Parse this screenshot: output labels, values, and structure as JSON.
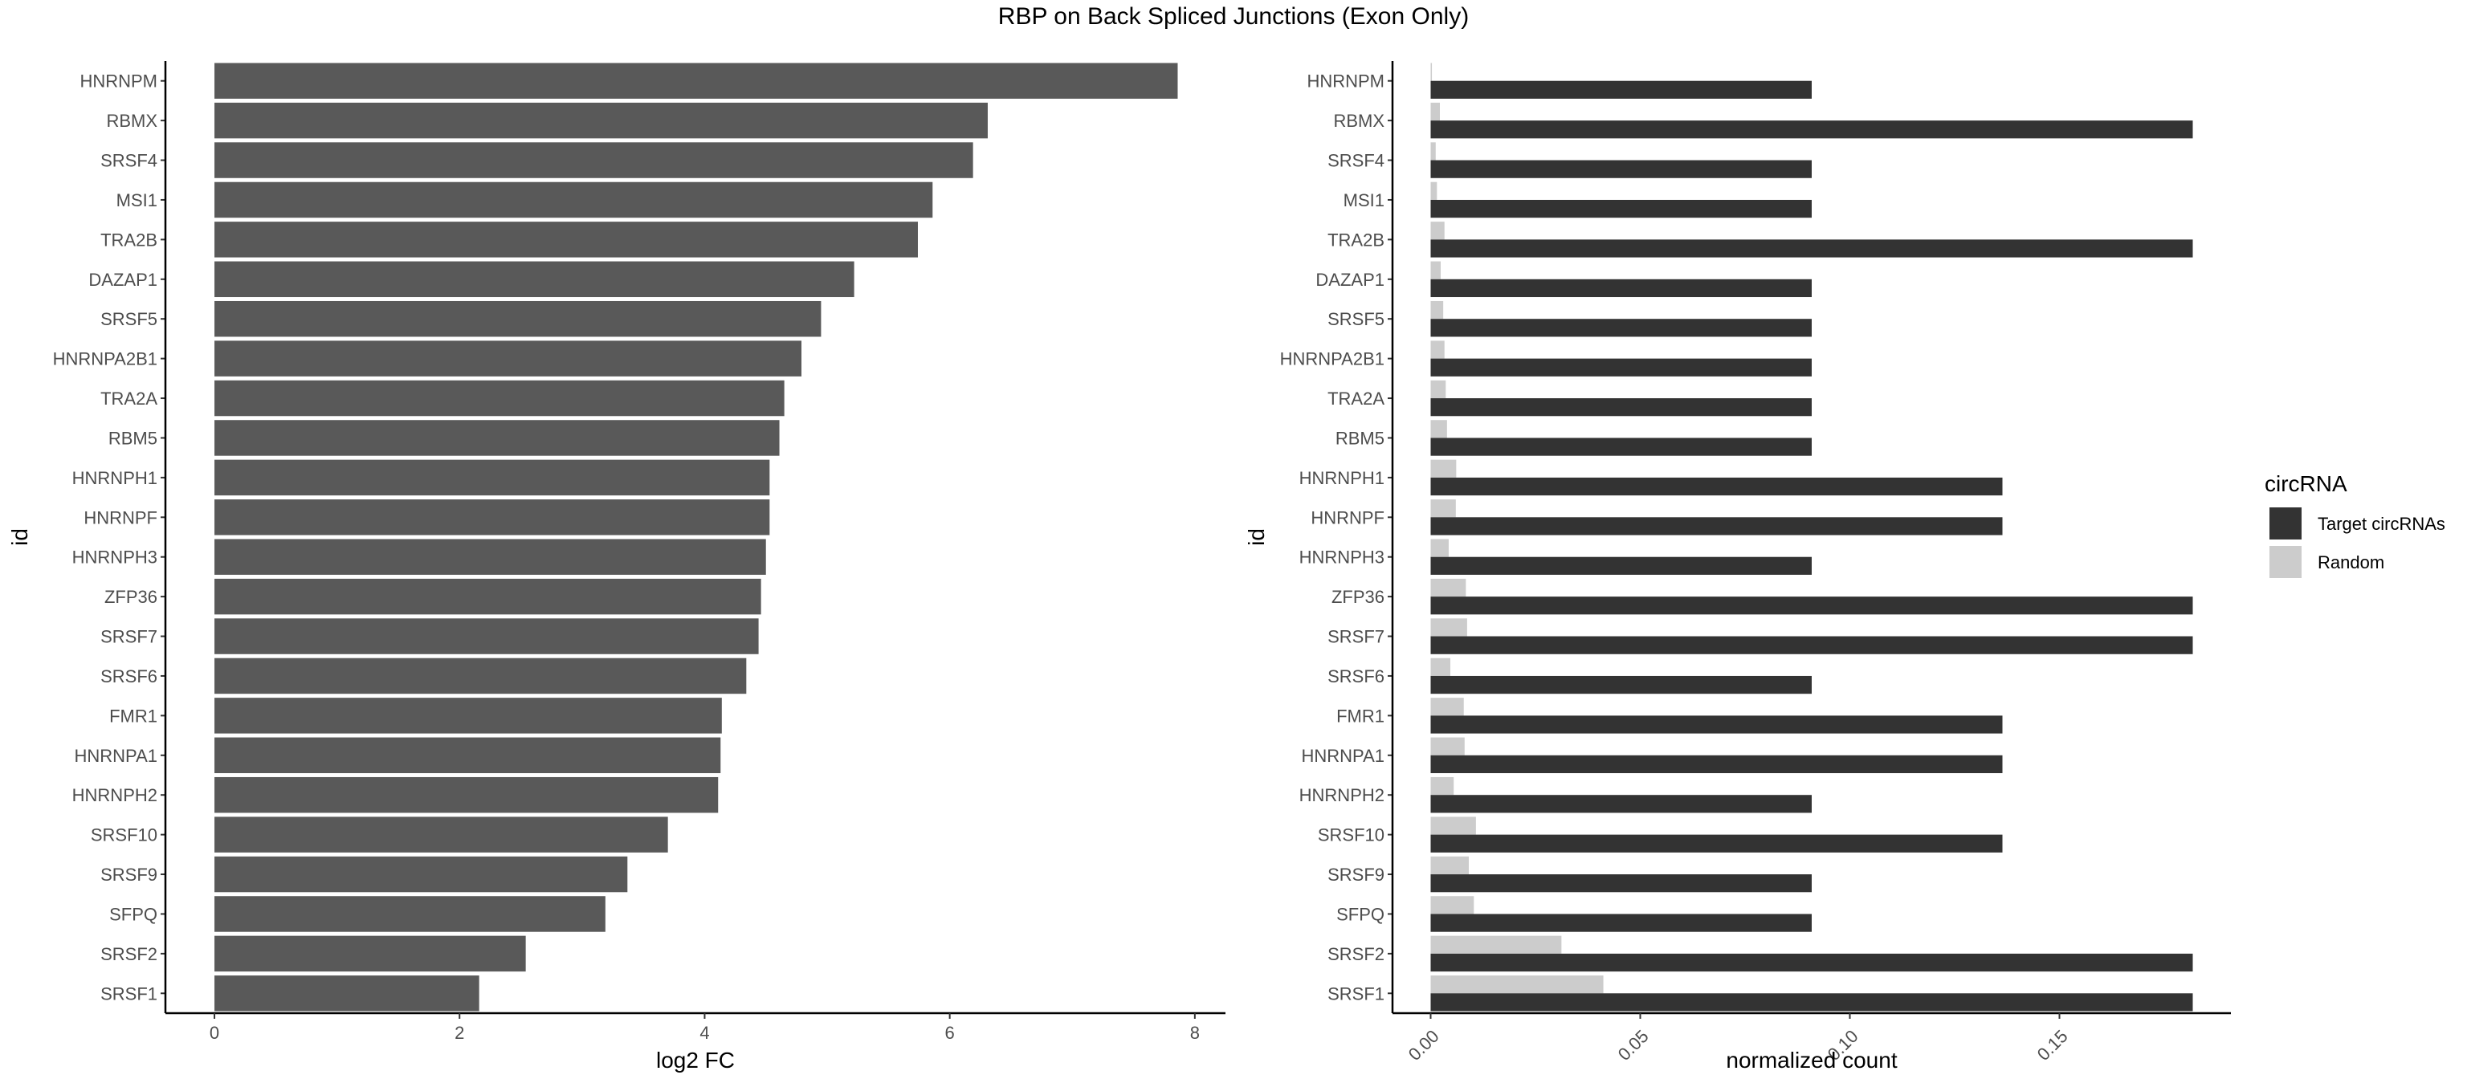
{
  "title": "RBP on Back Spliced Junctions (Exon Only)",
  "chart_data": [
    {
      "type": "bar",
      "orientation": "horizontal",
      "categories": [
        "HNRNPM",
        "RBMX",
        "SRSF4",
        "MSI1",
        "TRA2B",
        "DAZAP1",
        "SRSF5",
        "HNRNPA2B1",
        "TRA2A",
        "RBM5",
        "HNRNPH1",
        "HNRNPF",
        "HNRNPH3",
        "ZFP36",
        "SRSF7",
        "SRSF6",
        "FMR1",
        "HNRNPA1",
        "HNRNPH2",
        "SRSF10",
        "SRSF9",
        "SFPQ",
        "SRSF2",
        "SRSF1"
      ],
      "values": [
        7.86,
        6.31,
        6.19,
        5.86,
        5.74,
        5.22,
        4.95,
        4.79,
        4.65,
        4.61,
        4.53,
        4.53,
        4.5,
        4.46,
        4.44,
        4.34,
        4.14,
        4.13,
        4.11,
        3.7,
        3.37,
        3.19,
        2.54,
        2.16
      ],
      "xlabel": "log2 FC",
      "ylabel": "id",
      "xlim": [
        -0.4,
        8.25
      ],
      "xticks": [
        0,
        2,
        4,
        6,
        8
      ],
      "bar_color": "#595959",
      "grid": false
    },
    {
      "type": "bar",
      "orientation": "horizontal",
      "grouped": true,
      "categories": [
        "HNRNPM",
        "RBMX",
        "SRSF4",
        "MSI1",
        "TRA2B",
        "DAZAP1",
        "SRSF5",
        "HNRNPA2B1",
        "TRA2A",
        "RBM5",
        "HNRNPH1",
        "HNRNPF",
        "HNRNPH3",
        "ZFP36",
        "SRSF7",
        "SRSF6",
        "FMR1",
        "HNRNPA1",
        "HNRNPH2",
        "SRSF10",
        "SRSF9",
        "SFPQ",
        "SRSF2",
        "SRSF1"
      ],
      "series": [
        {
          "name": "Target circRNAs",
          "color": "#333333",
          "values": [
            0.0909,
            0.1818,
            0.0909,
            0.0909,
            0.1818,
            0.0909,
            0.0909,
            0.0909,
            0.0909,
            0.0909,
            0.1364,
            0.1364,
            0.0909,
            0.1818,
            0.1818,
            0.0909,
            0.1364,
            0.1364,
            0.0909,
            0.1364,
            0.0909,
            0.0909,
            0.1818,
            0.1818
          ]
        },
        {
          "name": "Random",
          "color": "#cccccc",
          "values": [
            0.0003,
            0.0022,
            0.0012,
            0.0015,
            0.0033,
            0.0024,
            0.003,
            0.0033,
            0.0036,
            0.0039,
            0.0061,
            0.006,
            0.0043,
            0.0084,
            0.0087,
            0.0047,
            0.0079,
            0.0081,
            0.0055,
            0.0108,
            0.0091,
            0.0103,
            0.0312,
            0.0412
          ]
        }
      ],
      "xlabel": "normalized count",
      "ylabel": "id",
      "xlim": [
        -0.0091,
        0.1909
      ],
      "xticks": [
        0.0,
        0.05,
        0.1,
        0.15
      ],
      "xtick_labels": [
        "0.00",
        "0.05",
        "0.10",
        "0.15"
      ],
      "legend_title": "circRNA",
      "legend_position": "right",
      "grid": false
    }
  ]
}
